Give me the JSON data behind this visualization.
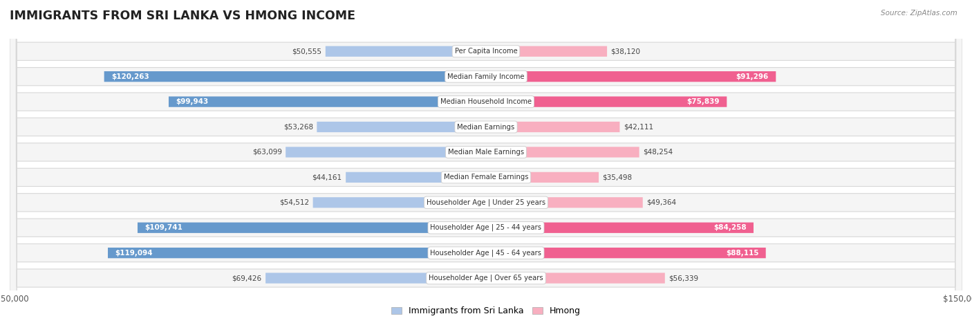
{
  "title": "IMMIGRANTS FROM SRI LANKA VS HMONG INCOME",
  "source": "Source: ZipAtlas.com",
  "categories": [
    "Per Capita Income",
    "Median Family Income",
    "Median Household Income",
    "Median Earnings",
    "Median Male Earnings",
    "Median Female Earnings",
    "Householder Age | Under 25 years",
    "Householder Age | 25 - 44 years",
    "Householder Age | 45 - 64 years",
    "Householder Age | Over 65 years"
  ],
  "sri_lanka_values": [
    50555,
    120263,
    99943,
    53268,
    63099,
    44161,
    54512,
    109741,
    119094,
    69426
  ],
  "hmong_values": [
    38120,
    91296,
    75839,
    42111,
    48254,
    35498,
    49364,
    84258,
    88115,
    56339
  ],
  "sl_color_light": "#adc6e8",
  "sl_color_dark": "#6699cc",
  "hm_color_light": "#f8afc0",
  "hm_color_dark": "#f06090",
  "sl_threshold": 90000,
  "hm_threshold": 70000,
  "max_value": 150000,
  "row_bg": "#f5f5f5",
  "row_border": "#d8d8d8",
  "page_bg": "#ffffff",
  "sri_lanka_label": "Immigrants from Sri Lanka",
  "hmong_label": "Hmong"
}
